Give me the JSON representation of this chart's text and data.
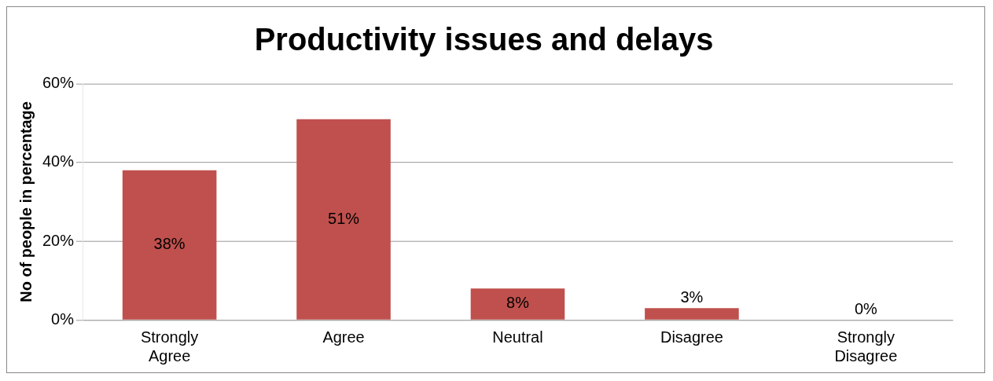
{
  "chart_data": {
    "type": "bar",
    "title": "Productivity issues and delays",
    "ylabel": "No of people in percentage",
    "categories": [
      "Strongly Agree",
      "Agree",
      "Neutral",
      "Disagree",
      "Strongly Disagree"
    ],
    "values": [
      38,
      51,
      8,
      3,
      0
    ],
    "value_labels": [
      "38%",
      "51%",
      "8%",
      "3%",
      "0%"
    ],
    "color": "#c0504d",
    "ylim": [
      0,
      60
    ],
    "yticks": [
      {
        "value": 0,
        "label": "0%"
      },
      {
        "value": 20,
        "label": "20%"
      },
      {
        "value": 40,
        "label": "40%"
      },
      {
        "value": 60,
        "label": "60%"
      }
    ],
    "grid": "y"
  }
}
